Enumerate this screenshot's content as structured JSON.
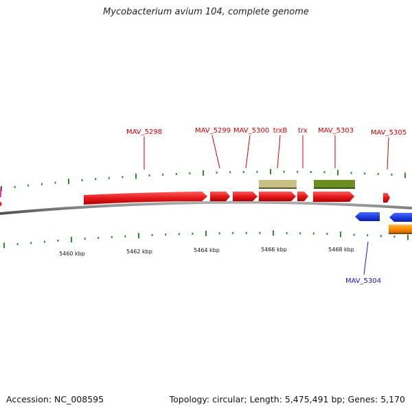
{
  "title": "Mycobacterium avium 104, complete genome",
  "footer": {
    "accession": "Accession: NC_008595",
    "summary": "Topology: circular; Length: 5,475,491 bp; Genes: 5,170"
  },
  "colors": {
    "forward_cds": "#e41a1c",
    "reverse_cds": "#1f3fe0",
    "trxB_feature": "#c8c084",
    "trx_region_feature": "#6b8e23",
    "reverse_other": "#ff8c00",
    "left_edge_feature": "#e040a0",
    "backbone": "#808080",
    "tick": "#2e8b2e",
    "forward_label": "#d40000",
    "reverse_label": "#1515c8"
  },
  "scale_labels": [
    "5460 kbp",
    "5462 kbp",
    "5464 kbp",
    "5466 kbp",
    "5468 kbp"
  ],
  "gene_labels": [
    {
      "name": "MAV_5298",
      "strand": "forward"
    },
    {
      "name": "MAV_5299",
      "strand": "forward"
    },
    {
      "name": "MAV_5300",
      "strand": "forward"
    },
    {
      "name": "trxB",
      "strand": "forward"
    },
    {
      "name": "trx",
      "strand": "forward"
    },
    {
      "name": "MAV_5303",
      "strand": "forward"
    },
    {
      "name": "MAV_5305",
      "strand": "forward"
    },
    {
      "name": "MAV_5304",
      "strand": "reverse"
    }
  ]
}
